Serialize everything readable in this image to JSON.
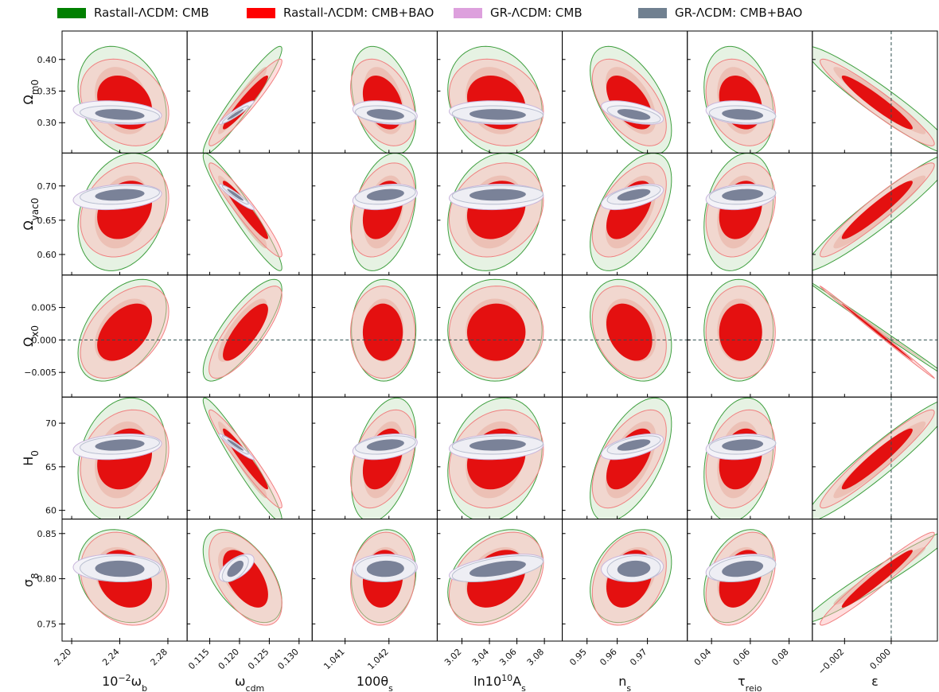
{
  "legend": [
    {
      "label": "Rastall-ΛCDM: CMB",
      "color": "#008000"
    },
    {
      "label": "Rastall-ΛCDM: CMB+BAO",
      "color": "#ff0000"
    },
    {
      "label": "GR-ΛCDM: CMB",
      "color": "#dda0dd"
    },
    {
      "label": "GR-ΛCDM: CMB+BAO",
      "color": "#708090"
    }
  ],
  "chart_data": {
    "type": "scatter",
    "description_kind": "triangle-style corner plot of 2D confidence contours (68% and 95%)",
    "columns": [
      {
        "key": "wb",
        "xlabel_html": "10<tspan baseline-shift=\"super\" font-size=\"11\">−2</tspan>ω<tspan baseline-shift=\"sub\" font-size=\"11\">b</tspan>",
        "range": [
          2.192,
          2.296
        ],
        "ticks": [
          2.2,
          2.24,
          2.28
        ],
        "tick_labels": [
          "2.20",
          "2.24",
          "2.28"
        ]
      },
      {
        "key": "wcdm",
        "xlabel_html": "ω<tspan baseline-shift=\"sub\" font-size=\"11\">cdm</tspan>",
        "range": [
          0.1112,
          0.1322
        ],
        "ticks": [
          0.115,
          0.12,
          0.125,
          0.13
        ],
        "tick_labels": [
          "0.115",
          "0.120",
          "0.125",
          "0.130"
        ]
      },
      {
        "key": "theta",
        "xlabel_html": "100θ<tspan baseline-shift=\"sub\" font-size=\"11\">s</tspan>",
        "range": [
          1.04025,
          1.0431
        ],
        "ticks": [
          1.041,
          1.042
        ],
        "tick_labels": [
          "1.041",
          "1.042"
        ]
      },
      {
        "key": "As",
        "xlabel_html": "ln10<tspan baseline-shift=\"super\" font-size=\"11\">10</tspan>A<tspan baseline-shift=\"sub\" font-size=\"11\">s</tspan>",
        "range": [
          3.002,
          3.093
        ],
        "ticks": [
          3.02,
          3.04,
          3.06,
          3.08
        ],
        "tick_labels": [
          "3.02",
          "3.04",
          "3.06",
          "3.08"
        ]
      },
      {
        "key": "ns",
        "xlabel_html": "n<tspan baseline-shift=\"sub\" font-size=\"11\">s</tspan>",
        "range": [
          0.9418,
          0.9832
        ],
        "ticks": [
          0.95,
          0.96,
          0.97
        ],
        "tick_labels": [
          "0.95",
          "0.96",
          "0.97"
        ]
      },
      {
        "key": "tau",
        "xlabel_html": "τ<tspan baseline-shift=\"sub\" font-size=\"11\">reio</tspan>",
        "range": [
          0.0275,
          0.092
        ],
        "ticks": [
          0.04,
          0.06,
          0.08
        ],
        "tick_labels": [
          "0.04",
          "0.06",
          "0.08"
        ]
      },
      {
        "key": "eps",
        "xlabel_html": "ε",
        "range": [
          -0.00338,
          0.00198
        ],
        "ticks": [
          -0.002,
          0.0
        ],
        "tick_labels": [
          "−0.002",
          "0.000"
        ],
        "reference_line": 0
      }
    ],
    "rows": [
      {
        "key": "Om",
        "ylabel_html": "Ω<tspan baseline-shift=\"sub\" font-size=\"12\">m0</tspan>",
        "range": [
          0.252,
          0.445
        ],
        "ticks": [
          0.3,
          0.35,
          0.4
        ],
        "tick_labels": [
          "0.30",
          "0.35",
          "0.40"
        ]
      },
      {
        "key": "Ovac",
        "ylabel_html": "Ω<tspan baseline-shift=\"sub\" font-size=\"12\">vac0</tspan>",
        "range": [
          0.57,
          0.748
        ],
        "ticks": [
          0.6,
          0.65,
          0.7
        ],
        "tick_labels": [
          "0.60",
          "0.65",
          "0.70"
        ]
      },
      {
        "key": "Ox",
        "ylabel_html": "Ω<tspan baseline-shift=\"sub\" font-size=\"12\">x0</tspan>",
        "range": [
          -0.0088,
          0.01
        ],
        "ticks": [
          -0.005,
          0.0,
          0.005
        ],
        "tick_labels": [
          "−0.005",
          "0.000",
          "0.005"
        ],
        "reference_line": 0
      },
      {
        "key": "H0",
        "ylabel_html": "H<tspan baseline-shift=\"sub\" font-size=\"12\">0</tspan>",
        "range": [
          59.0,
          73.0
        ],
        "ticks": [
          60,
          65,
          70
        ],
        "tick_labels": [
          "60",
          "65",
          "70"
        ]
      },
      {
        "key": "s8",
        "ylabel_html": "σ<tspan baseline-shift=\"sub\" font-size=\"12\">8</tspan>",
        "range": [
          0.731,
          0.866
        ],
        "ticks": [
          0.75,
          0.8,
          0.85
        ],
        "tick_labels": [
          "0.75",
          "0.80",
          "0.85"
        ]
      }
    ],
    "params_center": {
      "rastall_cmb": {
        "wb": 2.242,
        "wcdm": 0.1205,
        "theta": 1.04188,
        "As": 3.044,
        "ns": 0.9645,
        "tau": 0.054,
        "eps": -0.0005,
        "Om": 0.335,
        "Ovac": 0.662,
        "Ox": 0.0015,
        "H0": 65.8,
        "s8": 0.803
      },
      "rastall_bao": {
        "wb": 2.244,
        "wcdm": 0.121,
        "theta": 1.04186,
        "As": 3.045,
        "ns": 0.964,
        "tau": 0.055,
        "eps": -0.0006,
        "Om": 0.332,
        "Ovac": 0.665,
        "Ox": 0.0012,
        "H0": 65.9,
        "s8": 0.8
      },
      "gr_cmb": {
        "wb": 2.238,
        "wcdm": 0.1195,
        "theta": 1.04191,
        "As": 3.045,
        "ns": 0.965,
        "tau": 0.055,
        "Om": 0.316,
        "Ovac": 0.684,
        "H0": 67.3,
        "s8": 0.812
      },
      "gr_bao": {
        "wb": 2.24,
        "wcdm": 0.1193,
        "theta": 1.04192,
        "As": 3.046,
        "ns": 0.9655,
        "tau": 0.056,
        "Om": 0.313,
        "Ovac": 0.687,
        "H0": 67.5,
        "s8": 0.811
      }
    },
    "correlations": {
      "rastall": {
        "Om": [
          -0.25,
          0.95,
          -0.35,
          -0.2,
          -0.55,
          -0.25,
          -0.95
        ],
        "Ovac": [
          0.25,
          -0.95,
          0.35,
          0.2,
          0.55,
          0.25,
          0.95
        ],
        "Ox": [
          0.45,
          0.8,
          0.0,
          0.0,
          -0.3,
          0.0,
          -0.999
        ],
        "H0": [
          0.2,
          -0.96,
          0.4,
          0.2,
          0.58,
          0.25,
          0.95
        ],
        "s8": [
          -0.2,
          -0.55,
          0.1,
          0.35,
          0.3,
          0.35,
          0.97
        ]
      },
      "gr": {
        "Om": [
          -0.25,
          0.95,
          -0.3,
          -0.1,
          -0.55,
          -0.2
        ],
        "Ovac": [
          0.25,
          -0.95,
          0.3,
          0.1,
          0.55,
          0.2
        ],
        "H0": [
          0.25,
          -0.96,
          0.35,
          0.15,
          0.58,
          0.2
        ],
        "s8": [
          -0.05,
          0.6,
          0.05,
          0.55,
          0.1,
          0.35
        ]
      }
    },
    "sigma": {
      "rastall_cmb": {
        "wb": 0.015,
        "wcdm": 0.0027,
        "theta": 0.0003,
        "As": 0.014,
        "ns": 0.0055,
        "tau": 0.0073,
        "eps": 0.0013,
        "Om": 0.035,
        "Ovac": 0.035,
        "Ox": 0.0032,
        "H0": 2.9,
        "s8": 0.021
      },
      "rastall_bao": {
        "wb": 0.015,
        "wcdm": 0.0025,
        "theta": 0.0003,
        "As": 0.014,
        "ns": 0.005,
        "tau": 0.0073,
        "eps": 0.001,
        "Om": 0.028,
        "Ovac": 0.028,
        "Ox": 0.0029,
        "H0": 2.3,
        "s8": 0.021
      },
      "gr_cmb": {
        "wb": 0.015,
        "wcdm": 0.0012,
        "theta": 0.0003,
        "As": 0.014,
        "ns": 0.0042,
        "tau": 0.0073,
        "Om": 0.0076,
        "Ovac": 0.0076,
        "H0": 0.6,
        "s8": 0.0062
      },
      "gr_bao": {
        "wb": 0.0135,
        "wcdm": 0.0009,
        "theta": 0.00028,
        "As": 0.0135,
        "ns": 0.0036,
        "tau": 0.007,
        "Om": 0.0056,
        "Ovac": 0.0056,
        "H0": 0.43,
        "s8": 0.0059
      }
    },
    "series": [
      {
        "name": "Rastall-ΛCDM: CMB",
        "key": "rastall_cmb",
        "model": "rastall",
        "color_fill_1": "#ddc9b5",
        "color_fill_2": "#e6f2e3",
        "color_line": "#3f9f3f"
      },
      {
        "name": "Rastall-ΛCDM: CMB+BAO",
        "key": "rastall_bao",
        "model": "rastall",
        "color_fill_1": "#e41010",
        "color_fill_2": "rgba(255,182,182,0.45)",
        "color_line": "#f08080"
      },
      {
        "name": "GR-ΛCDM: CMB",
        "key": "gr_cmb",
        "model": "gr",
        "color_fill_1": "#dfdae9",
        "color_fill_2": "#f4f3f8",
        "color_line": "#c9b6dc"
      },
      {
        "name": "GR-ΛCDM: CMB+BAO",
        "key": "gr_bao",
        "model": "gr",
        "color_fill_1": "#7a8298",
        "color_fill_2": "#eeeef4",
        "color_line": "#b9bfd0"
      }
    ]
  }
}
